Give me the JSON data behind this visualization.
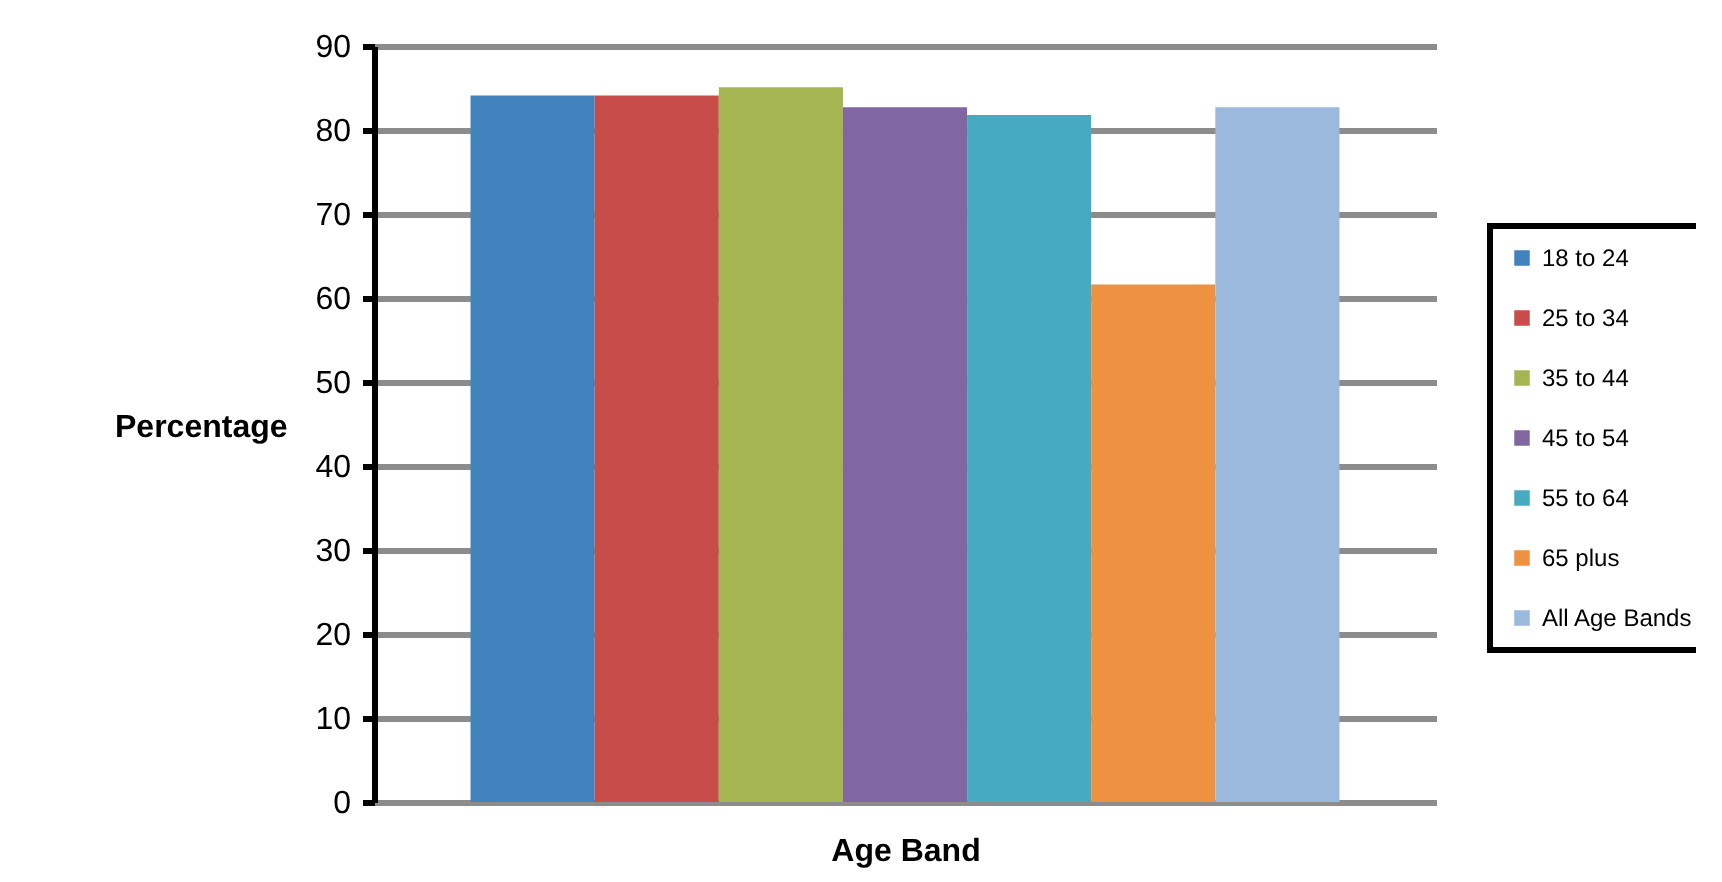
{
  "chart_data": {
    "type": "bar",
    "xlabel": "Age Band",
    "ylabel": "Percentage",
    "categories": [
      null
    ],
    "series": [
      {
        "name": "18 to 24",
        "color": "#4183bd",
        "values": [
          84.1
        ]
      },
      {
        "name": "25 to 34",
        "color": "#c84d4a",
        "values": [
          84.1
        ]
      },
      {
        "name": "35 to 44",
        "color": "#a5b552",
        "values": [
          85.1
        ]
      },
      {
        "name": "45 to 54",
        "color": "#8067a2",
        "values": [
          82.7
        ]
      },
      {
        "name": "55 to 64",
        "color": "#46abc0",
        "values": [
          81.8
        ]
      },
      {
        "name": "65 plus",
        "color": "#ee9141",
        "values": [
          61.6
        ]
      },
      {
        "name": "All Age Bands",
        "color": "#9bb9dd",
        "values": [
          82.7
        ]
      }
    ],
    "ylim": [
      0,
      90
    ],
    "yticks": [
      0,
      10,
      20,
      30,
      40,
      50,
      60,
      70,
      80,
      90
    ],
    "grid": "y",
    "legend": "right"
  }
}
